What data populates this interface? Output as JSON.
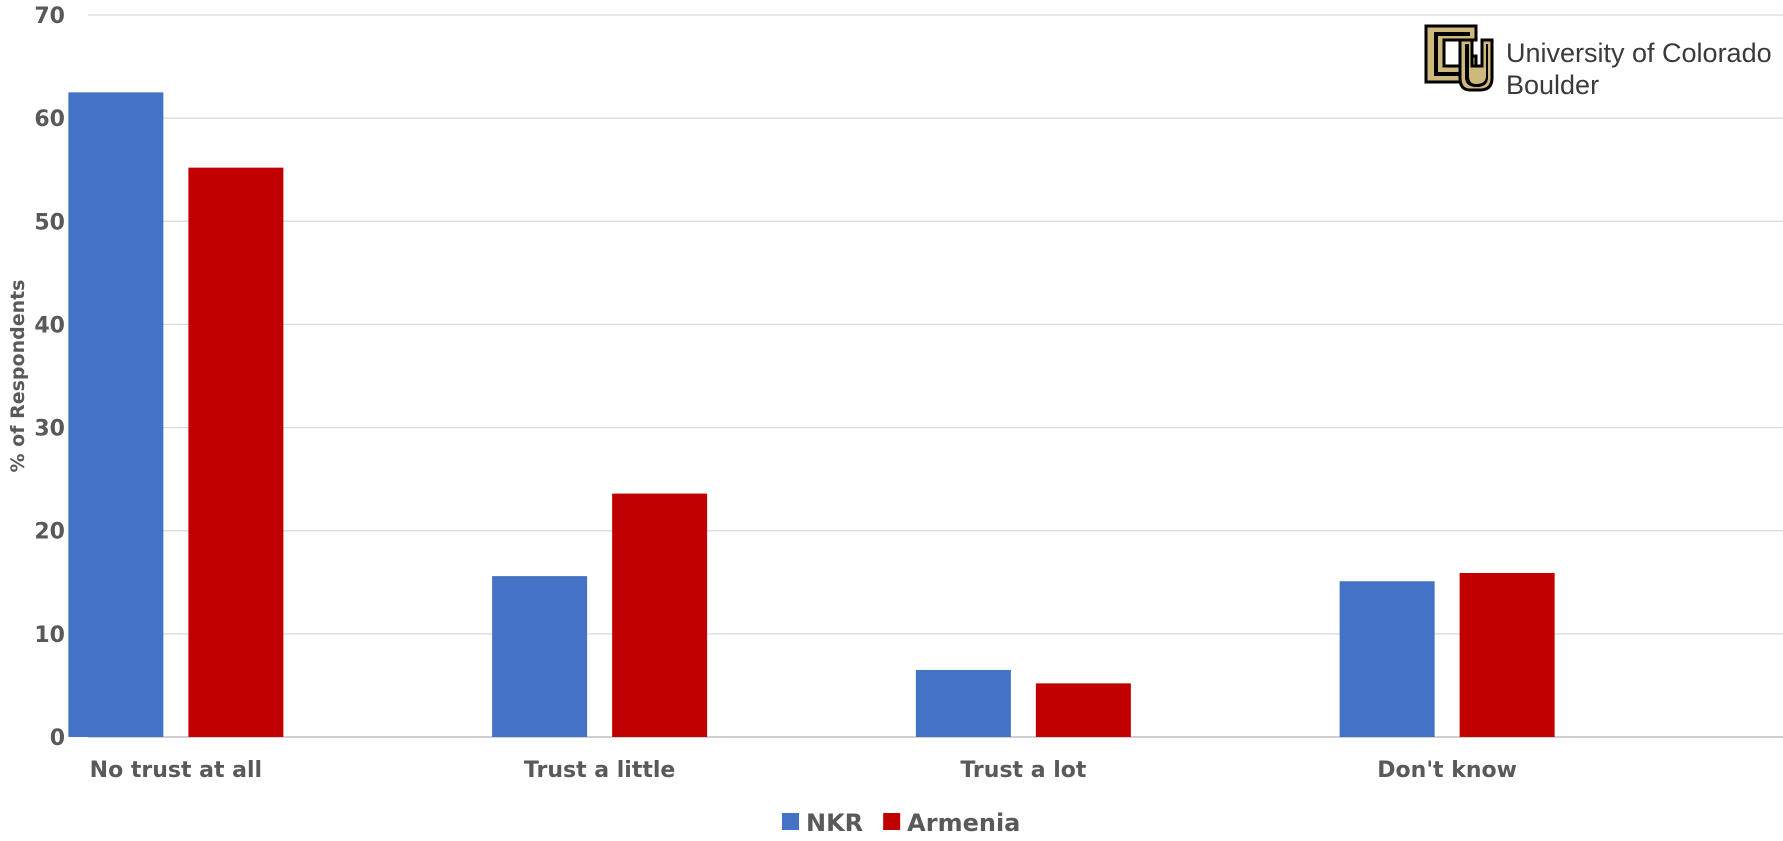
{
  "chart_data": {
    "type": "bar",
    "categories": [
      "No trust at all",
      "Trust a little",
      "Trust a lot",
      "Don't know"
    ],
    "series": [
      {
        "name": "NKR",
        "color": "#4472c4",
        "values": [
          62.5,
          15.6,
          6.5,
          15.1
        ]
      },
      {
        "name": "Armenia",
        "color": "#c00000",
        "values": [
          55.2,
          23.6,
          5.2,
          15.9
        ]
      }
    ],
    "title": "",
    "xlabel": "",
    "ylabel": "% of Respondents",
    "ylim": [
      0,
      70
    ],
    "yticks": [
      0,
      10,
      20,
      30,
      40,
      50,
      60,
      70
    ],
    "grid": true,
    "legend_position": "bottom"
  },
  "logo": {
    "line1": "University of Colorado",
    "line2": "Boulder",
    "gold": "#cfb87c",
    "black": "#000000"
  }
}
